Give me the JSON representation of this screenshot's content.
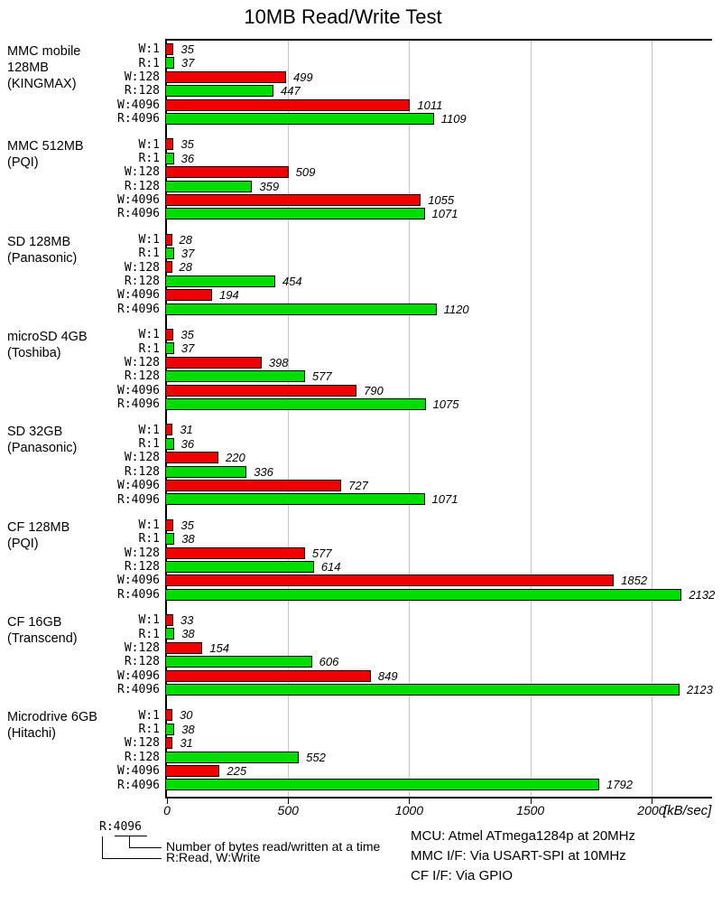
{
  "chart_data": {
    "type": "bar",
    "orientation": "horizontal",
    "title": "10MB Read/Write Test",
    "xlabel": "[kB/sec]",
    "xlim": [
      0,
      2250
    ],
    "x_ticks": [
      0,
      500,
      1000,
      1500,
      2000
    ],
    "grid": true,
    "bar_labels": [
      "W:1",
      "R:1",
      "W:128",
      "R:128",
      "W:4096",
      "R:4096"
    ],
    "colors": {
      "write": "#f00000",
      "read": "#00dd00"
    },
    "groups": [
      {
        "name_lines": [
          "MMC mobile",
          "128MB",
          "(KINGMAX)"
        ],
        "values": [
          35,
          37,
          499,
          447,
          1011,
          1109
        ]
      },
      {
        "name_lines": [
          "MMC 512MB",
          "(PQI)"
        ],
        "values": [
          35,
          36,
          509,
          359,
          1055,
          1071
        ]
      },
      {
        "name_lines": [
          "SD 128MB",
          "(Panasonic)"
        ],
        "values": [
          28,
          37,
          28,
          454,
          194,
          1120
        ]
      },
      {
        "name_lines": [
          "microSD 4GB",
          "(Toshiba)"
        ],
        "values": [
          35,
          37,
          398,
          577,
          790,
          1075
        ]
      },
      {
        "name_lines": [
          "SD 32GB",
          "(Panasonic)"
        ],
        "values": [
          31,
          36,
          220,
          336,
          727,
          1071
        ]
      },
      {
        "name_lines": [
          "CF 128MB",
          "(PQI)"
        ],
        "values": [
          35,
          38,
          577,
          614,
          1852,
          2132
        ]
      },
      {
        "name_lines": [
          "CF 16GB",
          "(Transcend)"
        ],
        "values": [
          33,
          38,
          154,
          606,
          849,
          2123
        ]
      },
      {
        "name_lines": [
          "Microdrive 6GB",
          "(Hitachi)"
        ],
        "values": [
          30,
          38,
          31,
          552,
          225,
          1792
        ]
      }
    ]
  },
  "legend": {
    "example": "R:4096",
    "bytes_note": "Number of bytes read/written at a time",
    "rw_note": "R:Read, W:Write"
  },
  "notes": [
    "MCU: Atmel ATmega1284p at 20MHz",
    "MMC I/F: Via USART-SPI at 10MHz",
    "CF I/F: Via GPIO"
  ]
}
